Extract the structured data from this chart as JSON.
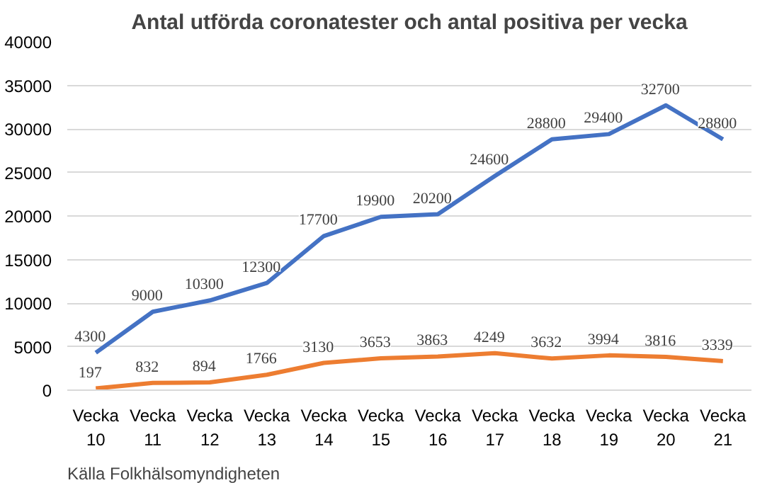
{
  "chart_data": {
    "type": "line",
    "title": "Antal utförda coronatester och antal positiva per vecka",
    "categories": [
      "Vecka 10",
      "Vecka 11",
      "Vecka 12",
      "Vecka 13",
      "Vecka 14",
      "Vecka 15",
      "Vecka 16",
      "Vecka 17",
      "Vecka 18",
      "Vecka 19",
      "Vecka 20",
      "Vecka 21"
    ],
    "series": [
      {
        "color": "#4472c4",
        "values": [
          4300,
          9000,
          10300,
          12300,
          17700,
          19900,
          20200,
          24600,
          28800,
          29400,
          32700,
          28800
        ]
      },
      {
        "color": "#ed7d31",
        "values": [
          197,
          832,
          894,
          1766,
          3130,
          3653,
          3863,
          4249,
          3632,
          3994,
          3816,
          3339
        ]
      }
    ],
    "ylim": [
      0,
      40000
    ],
    "yticks": [
      0,
      5000,
      10000,
      15000,
      20000,
      25000,
      30000,
      35000,
      40000
    ],
    "grid": "y",
    "marker": "none",
    "line_style": "solid",
    "data_labels": true,
    "annotations": [
      "Källa Folkhälsomyndigheten"
    ]
  }
}
